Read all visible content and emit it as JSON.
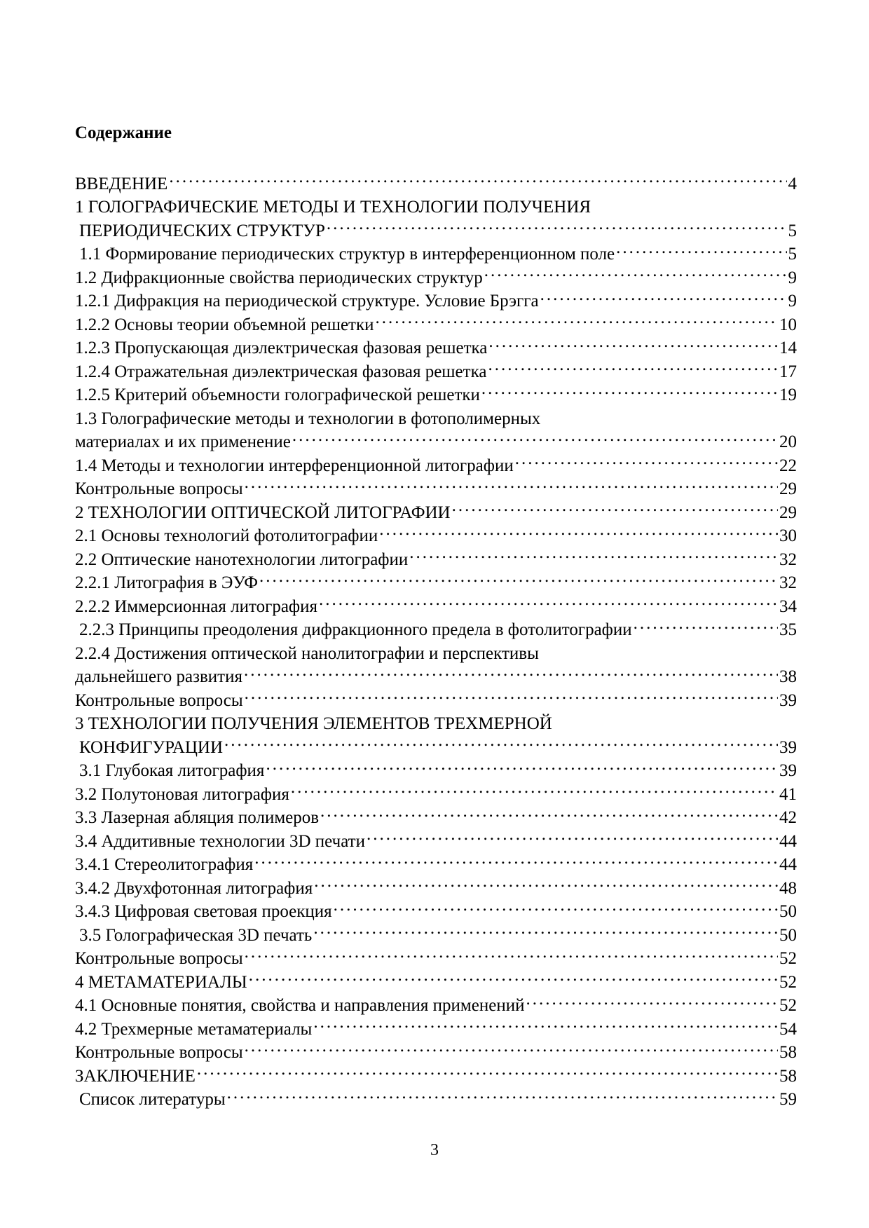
{
  "title": "Содержание",
  "toc": [
    {
      "text": "ВВЕДЕНИЕ",
      "page": "4"
    },
    {
      "text": "1 ГОЛОГРАФИЧЕСКИЕ МЕТОДЫ И ТЕХНОЛОГИИ ПОЛУЧЕНИЯ",
      "page": ""
    },
    {
      "text": "ПЕРИОДИЧЕСКИХ СТРУКТУР",
      "page": "5"
    },
    {
      "text": "1.1 Формирование периодических структур в интерференционном поле",
      "page": "5"
    },
    {
      "text": "1.2 Дифракционные свойства периодических структур",
      "page": "9"
    },
    {
      "text": "1.2.1 Дифракция на периодической структуре. Условие Брэгга",
      "page": "9"
    },
    {
      "text": "1.2.2 Основы теории объемной решетки",
      "page": "10"
    },
    {
      "text": "1.2.3 Пропускающая диэлектрическая фазовая решетка",
      "page": "14"
    },
    {
      "text": "1.2.4 Отражательная диэлектрическая фазовая решетка",
      "page": "17"
    },
    {
      "text": "1.2.5 Критерий объемности голографической решетки",
      "page": "19"
    },
    {
      "text": "1.3 Голографические методы и технологии в фотополимерных",
      "page": ""
    },
    {
      "text": "материалах и их применение",
      "page": "20"
    },
    {
      "text": "1.4 Методы и технологии интерференционной литографии",
      "page": "22"
    },
    {
      "text": "Контрольные вопросы",
      "page": "29"
    },
    {
      "text": "2 ТЕХНОЛОГИИ ОПТИЧЕСКОЙ ЛИТОГРАФИИ",
      "page": "29"
    },
    {
      "text": "2.1 Основы технологий фотолитографии",
      "page": "30"
    },
    {
      "text": "2.2 Оптические нанотехнологии литографии",
      "page": "32"
    },
    {
      "text": "2.2.1 Литография в ЭУФ",
      "page": "32"
    },
    {
      "text": "2.2.2 Иммерсионная литография",
      "page": "34"
    },
    {
      "text": "2.2.3 Принципы преодоления дифракционного предела в фотолитографии",
      "page": "35"
    },
    {
      "text": "2.2.4 Достижения оптической нанолитографии и перспективы",
      "page": ""
    },
    {
      "text": "дальнейшего развития",
      "page": "38"
    },
    {
      "text": "Контрольные вопросы",
      "page": "39"
    },
    {
      "text": "3 ТЕХНОЛОГИИ ПОЛУЧЕНИЯ ЭЛЕМЕНТОВ ТРЕХМЕРНОЙ",
      "page": ""
    },
    {
      "text": "КОНФИГУРАЦИИ",
      "page": "39"
    },
    {
      "text": "3.1 Глубокая литография",
      "page": "39"
    },
    {
      "text": "3.2 Полутоновая литография",
      "page": "41"
    },
    {
      "text": "3.3 Лазерная абляция полимеров",
      "page": "42"
    },
    {
      "text": "3.4 Аддитивные технологии 3D печати",
      "page": "44"
    },
    {
      "text": "3.4.1 Стереолитография",
      "page": "44"
    },
    {
      "text": "3.4.2 Двухфотонная литография",
      "page": "48"
    },
    {
      "text": "3.4.3 Цифровая световая проекция",
      "page": "50"
    },
    {
      "text": "3.5 Голографическая 3D печать",
      "page": "50"
    },
    {
      "text": "Контрольные вопросы",
      "page": "52"
    },
    {
      "text": "4 МЕТАМАТЕРИАЛЫ",
      "page": "52"
    },
    {
      "text": "4.1 Основные понятия, свойства и направления применений",
      "page": "52"
    },
    {
      "text": "4.2 Трехмерные метаматериалы",
      "page": "54"
    },
    {
      "text": "Контрольные вопросы",
      "page": "58"
    },
    {
      "text": "ЗАКЛЮЧЕНИЕ",
      "page": "58"
    },
    {
      "text": "Список литературы",
      "page": "59"
    }
  ],
  "page_number": "3"
}
